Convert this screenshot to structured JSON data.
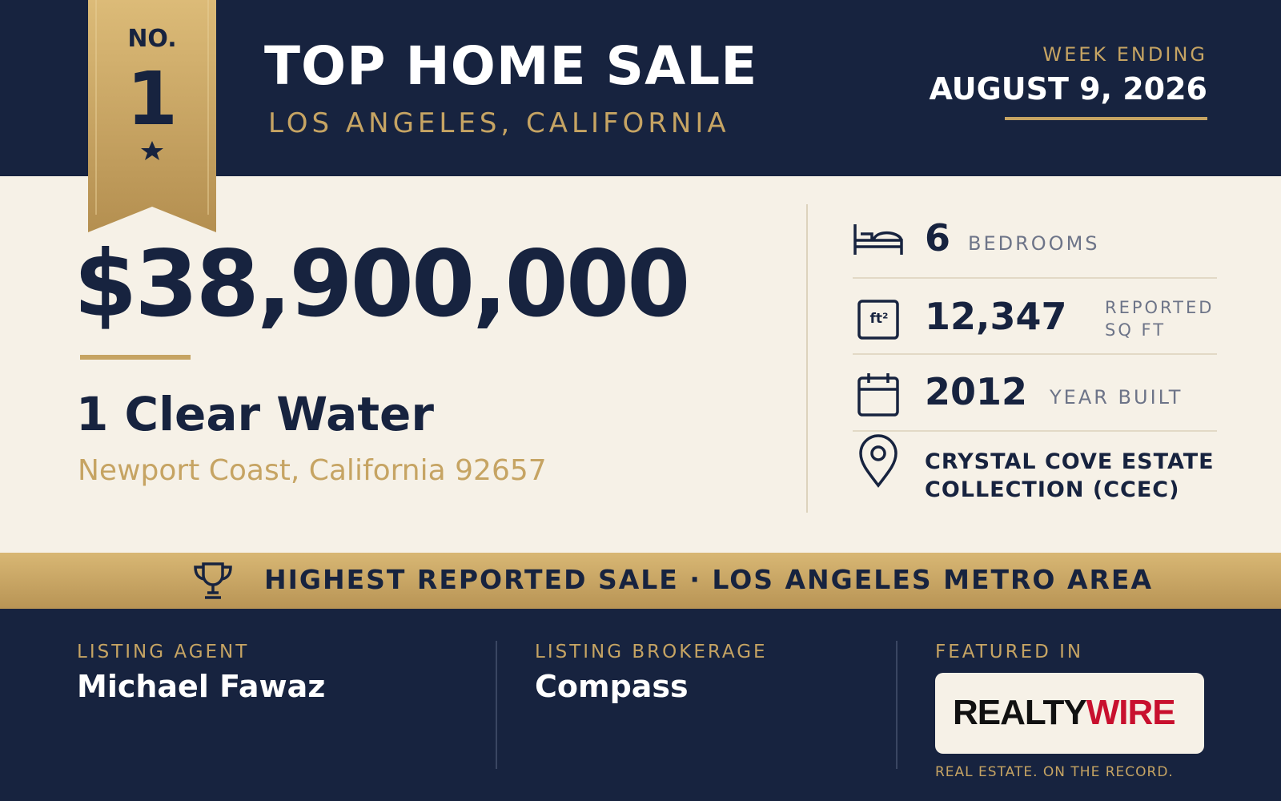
{
  "ribbon": {
    "label": "NO.",
    "rank": "1"
  },
  "header": {
    "title": "TOP HOME SALE",
    "location": "LOS ANGELES, CALIFORNIA",
    "week_label": "WEEK ENDING",
    "week_date": "AUGUST 9, 2026"
  },
  "sale": {
    "price": "$38,900,000",
    "address": "1 Clear Water",
    "city": "Newport Coast, California 92657"
  },
  "details": {
    "bedrooms": {
      "value": "6",
      "label": "BEDROOMS"
    },
    "area": {
      "icon": "ft²",
      "value": "12,347",
      "label": [
        "REPORTED",
        "SQ FT"
      ]
    },
    "year": {
      "value": "2012",
      "label": "YEAR BUILT"
    },
    "community": [
      "CRYSTAL COVE ESTATE",
      "COLLECTION (CCEC)"
    ]
  },
  "banner": "HIGHEST REPORTED SALE · LOS ANGELES METRO AREA",
  "footer": {
    "agent_label": "LISTING AGENT",
    "agent": "Michael Fawaz",
    "brokerage_label": "LISTING BROKERAGE",
    "brokerage": "Compass",
    "featured_label": "FEATURED IN",
    "logo": [
      "REALTY",
      "WIRE"
    ],
    "tagline": "REAL ESTATE. ON THE RECORD."
  }
}
